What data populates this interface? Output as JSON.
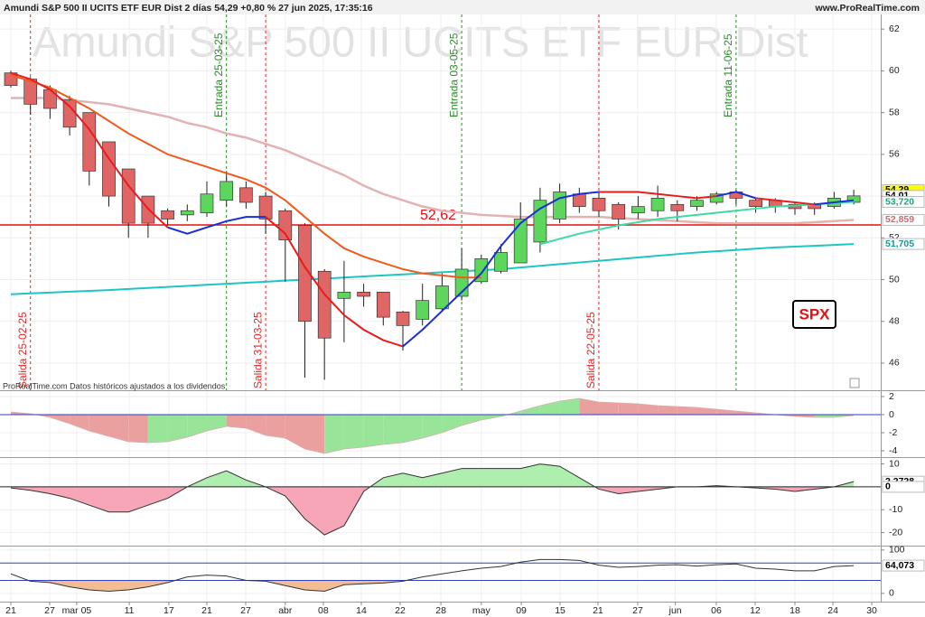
{
  "chart_data": {
    "type": "candlestick",
    "title": "Amundi S&P 500 II UCITS ETF EUR Dist 2 días 54,29 +0,80 % 27 jun 2025, 17:35:16",
    "site": "www.ProRealTime.com",
    "watermark": "Amundi S&P 500 II UCITS ETF EUR Dist",
    "note": "ProRealTime.com Datos históricos ajustados a los dividendos",
    "badge": "SPX",
    "up_color": "#5cd65c",
    "down_color": "#e06666",
    "open": [
      59.9,
      59.6,
      59.1,
      58.6,
      58.0,
      56.6,
      55.3,
      54.0,
      53.3,
      53.1,
      53.2,
      53.8,
      54.4,
      54.0,
      53.3,
      52.6,
      50.4,
      49.1,
      49.4,
      49.4,
      48.45,
      48.1,
      48.6,
      49.2,
      49.9,
      50.4,
      50.8,
      51.8,
      52.9,
      54.1,
      53.9,
      53.6,
      53.2,
      53.3,
      53.6,
      53.5,
      53.7,
      54.2,
      53.8,
      53.8,
      53.6,
      53.6,
      53.5,
      53.7
    ],
    "high": [
      60.0,
      59.7,
      59.3,
      58.8,
      58.0,
      56.6,
      55.3,
      54.0,
      53.4,
      53.6,
      54.7,
      55.2,
      54.7,
      54.2,
      53.4,
      52.7,
      50.5,
      50.9,
      49.8,
      49.4,
      48.5,
      49.8,
      50.3,
      51.5,
      51.2,
      51.7,
      53.7,
      54.4,
      54.6,
      54.4,
      54.2,
      53.7,
      54.0,
      54.5,
      53.8,
      54.0,
      54.2,
      54.3,
      53.9,
      53.9,
      53.7,
      53.7,
      54.2,
      54.3
    ],
    "low": [
      59.2,
      57.9,
      57.7,
      56.9,
      54.5,
      53.5,
      52.0,
      52.0,
      52.6,
      52.8,
      53.0,
      53.5,
      53.4,
      52.2,
      49.9,
      45.3,
      45.2,
      47.0,
      48.7,
      47.8,
      46.6,
      47.8,
      48.5,
      49.0,
      49.8,
      50.3,
      50.8,
      51.3,
      52.7,
      53.2,
      53.0,
      52.4,
      52.9,
      53.0,
      52.8,
      53.3,
      53.6,
      53.6,
      53.2,
      53.2,
      53.1,
      53.1,
      53.4,
      53.6
    ],
    "close": [
      59.3,
      58.4,
      58.2,
      57.3,
      55.2,
      54.0,
      52.7,
      52.7,
      52.9,
      53.3,
      54.1,
      54.7,
      53.7,
      52.9,
      51.9,
      48.0,
      47.2,
      49.4,
      49.2,
      48.2,
      47.8,
      49.0,
      49.7,
      50.5,
      51.0,
      51.3,
      52.9,
      53.8,
      54.2,
      53.5,
      53.3,
      52.9,
      53.5,
      53.9,
      53.3,
      53.8,
      54.1,
      53.9,
      53.5,
      53.5,
      53.4,
      53.4,
      53.9,
      54.01
    ],
    "ylim": [
      44.7,
      62.7
    ],
    "yticks": [
      62,
      60,
      58,
      56,
      54,
      52,
      50,
      48,
      46
    ],
    "xticks": [
      {
        "value": 0,
        "label": "21"
      },
      {
        "value": 1.98,
        "label": "27"
      },
      {
        "value": 3.36,
        "label": "mar 05"
      },
      {
        "value": 6.04,
        "label": "11"
      },
      {
        "value": 8.06,
        "label": "17"
      },
      {
        "value": 10.0,
        "label": "21"
      },
      {
        "value": 11.98,
        "label": "27"
      },
      {
        "value": 14.0,
        "label": "abr"
      },
      {
        "value": 15.94,
        "label": "08"
      },
      {
        "value": 17.88,
        "label": "14"
      },
      {
        "value": 19.86,
        "label": "22"
      },
      {
        "value": 21.94,
        "label": "28"
      },
      {
        "value": 24.0,
        "label": "may"
      },
      {
        "value": 26.04,
        "label": "09"
      },
      {
        "value": 28.02,
        "label": "15"
      },
      {
        "value": 29.95,
        "label": "21"
      },
      {
        "value": 31.98,
        "label": "27"
      },
      {
        "value": 33.9,
        "label": "jun"
      },
      {
        "value": 35.99,
        "label": "06"
      },
      {
        "value": 37.97,
        "label": "12"
      },
      {
        "value": 40.0,
        "label": "18"
      },
      {
        "value": 41.94,
        "label": "24"
      },
      {
        "value": 43.92,
        "label": "30"
      }
    ],
    "lines": [
      {
        "color": "#e3b2b2",
        "width": 2.5,
        "values": [
          58.7,
          58.7,
          58.7,
          58.6,
          58.5,
          58.4,
          58.2,
          58.0,
          57.8,
          57.5,
          57.3,
          57.0,
          56.8,
          56.5,
          56.2,
          55.8,
          55.4,
          55.0,
          54.5,
          54.1,
          53.8,
          53.5,
          53.3,
          53.2,
          53.1,
          53.05,
          53.0,
          53.0,
          53.0,
          53.0,
          53.0,
          52.95,
          52.9,
          52.85,
          52.8,
          52.75,
          52.7,
          52.7,
          52.7,
          52.7,
          52.7,
          52.75,
          52.8,
          52.859
        ]
      },
      {
        "color": "#1fc4c4",
        "width": 2,
        "values": [
          49.3,
          49.34,
          49.38,
          49.42,
          49.46,
          49.5,
          49.55,
          49.6,
          49.65,
          49.7,
          49.75,
          49.8,
          49.85,
          49.9,
          49.95,
          50.0,
          50.05,
          50.1,
          50.15,
          50.2,
          50.25,
          50.3,
          50.35,
          50.4,
          50.45,
          50.5,
          50.58,
          50.66,
          50.74,
          50.82,
          50.9,
          50.98,
          51.06,
          51.14,
          51.22,
          51.3,
          51.36,
          51.42,
          51.48,
          51.54,
          51.58,
          51.62,
          51.66,
          51.705
        ]
      },
      {
        "color": "#f05a1e",
        "width": 2,
        "values": [
          59.8,
          59.5,
          59.2,
          58.7,
          58.2,
          57.6,
          57.0,
          56.5,
          56.0,
          55.7,
          55.4,
          55.1,
          54.8,
          54.4,
          53.8,
          53.0,
          52.2,
          51.5,
          51.1,
          50.8,
          50.5,
          50.3,
          50.2,
          50.1,
          50.1,
          null,
          null,
          null,
          null,
          null,
          null,
          null,
          null,
          null,
          null,
          null,
          null,
          null,
          null,
          null,
          null,
          null,
          null,
          null
        ]
      },
      {
        "color": "#3cdca0",
        "width": 2,
        "values": [
          null,
          null,
          null,
          null,
          null,
          null,
          null,
          null,
          null,
          null,
          null,
          null,
          null,
          null,
          null,
          null,
          null,
          null,
          null,
          null,
          null,
          null,
          null,
          null,
          null,
          null,
          null,
          51.7,
          51.95,
          52.2,
          52.4,
          52.6,
          52.75,
          52.9,
          53.0,
          53.1,
          53.2,
          53.3,
          53.4,
          53.5,
          53.55,
          53.6,
          53.66,
          53.72
        ]
      },
      {
        "color": "#e81c1c",
        "width": 2,
        "values": [
          59.9,
          59.6,
          59.1,
          58.3,
          57.2,
          55.8,
          54.5,
          53.4,
          52.5,
          null,
          null,
          null,
          null,
          53.0,
          52.2,
          50.6,
          49.3,
          48.3,
          47.6,
          47.1,
          46.8,
          null,
          null,
          null,
          null,
          null,
          null,
          null,
          null,
          null,
          54.2,
          54.2,
          54.2,
          54.1,
          54.0,
          53.9,
          54.0,
          null,
          53.9,
          53.8,
          53.7,
          53.6,
          null,
          null
        ]
      },
      {
        "color": "#1a2fd6",
        "width": 2,
        "values": [
          null,
          null,
          null,
          null,
          null,
          null,
          null,
          null,
          52.5,
          52.2,
          52.5,
          52.8,
          53.0,
          53.0,
          null,
          null,
          null,
          null,
          null,
          null,
          46.8,
          47.6,
          48.5,
          49.4,
          50.3,
          51.6,
          52.7,
          53.4,
          53.9,
          54.1,
          54.2,
          null,
          null,
          null,
          null,
          null,
          54.0,
          54.2,
          53.9,
          null,
          null,
          53.6,
          53.7,
          53.8
        ]
      }
    ],
    "level": {
      "value": 52.62,
      "label": "52,62",
      "color": "#e01010"
    },
    "events": [
      {
        "index": 1,
        "label": "Salida 25-02-25",
        "color": "#e02828"
      },
      {
        "index": 11,
        "label": "Entrada 25-03-25",
        "color": "#2a8a2a"
      },
      {
        "index": 13,
        "label": "Salida 31-03-25",
        "color": "#e02828"
      },
      {
        "index": 23,
        "label": "Entrada 03-05-25",
        "color": "#2a8a2a"
      },
      {
        "index": 30,
        "label": "Salida 22-05-25",
        "color": "#e02828"
      },
      {
        "index": 37,
        "label": "Entrada 11-06-25",
        "color": "#2a8a2a"
      }
    ],
    "last_labels": [
      {
        "value": 54.29,
        "label": "54,29",
        "color": "#000000",
        "background": "#ffff00"
      },
      {
        "value": 54.01,
        "label": "54,01",
        "color": "#000000",
        "background": "#ffffff"
      },
      {
        "value": 53.72,
        "label": "53,720",
        "color": "#1aa57a",
        "background": "#ffffff"
      },
      {
        "value": 52.859,
        "label": "52,859",
        "color": "#d06a6a",
        "background": "#ffffff"
      },
      {
        "value": 51.705,
        "label": "51,705",
        "color": "#129a9a",
        "background": "#ffffff"
      }
    ],
    "panels": [
      {
        "type": "area-slope",
        "ylim": [
          -4.6,
          2.6
        ],
        "yticks": [
          2,
          0,
          -2,
          -4
        ],
        "zero_line": 0,
        "up_color": "#98e498",
        "down_color": "#eba0a0",
        "values": [
          0.3,
          0.1,
          -0.3,
          -1.0,
          -1.8,
          -2.4,
          -3.0,
          -3.1,
          -3.0,
          -2.5,
          -1.8,
          -1.3,
          -1.5,
          -2.3,
          -2.6,
          -3.8,
          -4.3,
          -3.8,
          -3.6,
          -3.3,
          -3.1,
          -2.6,
          -2.0,
          -1.2,
          -0.6,
          -0.2,
          0.4,
          1.0,
          1.5,
          1.8,
          1.4,
          1.3,
          1.2,
          1.0,
          0.9,
          0.8,
          0.6,
          0.4,
          0.2,
          0.0,
          -0.2,
          -0.3,
          -0.3,
          -0.1
        ],
        "last_labels": []
      },
      {
        "type": "area-sign",
        "ylim": [
          -25.3,
          12.6
        ],
        "yticks": [
          10,
          -10,
          -20
        ],
        "zero_line": 0,
        "up_color": "#aeeeae",
        "down_color": "#f6a6b6",
        "values": [
          -0.5,
          -1.5,
          -3,
          -5,
          -8,
          -11,
          -11,
          -8,
          -5,
          0,
          4,
          7,
          3,
          0,
          -4,
          -14,
          -21,
          -17,
          -2,
          4,
          6,
          4,
          6,
          8,
          8,
          8,
          8,
          10,
          9,
          4,
          -1,
          -3,
          -2,
          -1,
          0,
          0,
          0.5,
          0,
          -0.5,
          -1,
          -2,
          -1,
          0,
          2.2728
        ],
        "last_labels": [
          {
            "value": 2.2728,
            "label": "2,2728",
            "color": "#000000",
            "background": "#ffffff"
          },
          {
            "value": 0,
            "label": "0",
            "color": "#000000",
            "background": "#ffffff"
          }
        ]
      },
      {
        "type": "oscillator",
        "ylim": [
          -17,
          108
        ],
        "yticks": [
          100,
          0
        ],
        "levels": [
          70,
          30
        ],
        "fill_color": "#f2bc94",
        "values": [
          45,
          28,
          25,
          15,
          8,
          5,
          8,
          15,
          25,
          38,
          42,
          40,
          30,
          28,
          18,
          8,
          5,
          20,
          22,
          24,
          28,
          38,
          45,
          52,
          58,
          62,
          72,
          78,
          78,
          76,
          65,
          60,
          62,
          65,
          66,
          63,
          66,
          68,
          58,
          56,
          52,
          52,
          62,
          64.073
        ],
        "last_labels": [
          {
            "value": 64.073,
            "label": "64,073",
            "color": "#000000",
            "background": "#ffffff"
          }
        ]
      }
    ]
  }
}
